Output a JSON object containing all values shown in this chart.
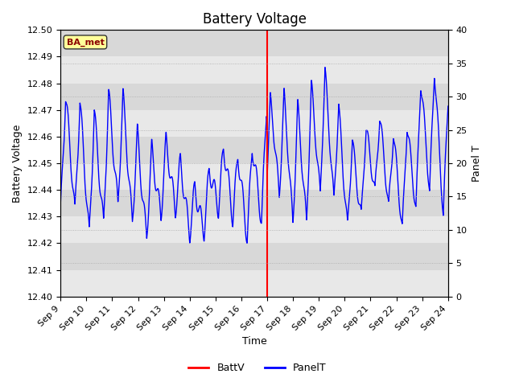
{
  "title": "Battery Voltage",
  "ylabel_left": "Battery Voltage",
  "ylabel_right": "Panel T",
  "xlabel": "Time",
  "ylim_left": [
    12.4,
    12.5
  ],
  "ylim_right": [
    0,
    40
  ],
  "x_start": 9,
  "x_end": 24,
  "x_ticks": [
    9,
    10,
    11,
    12,
    13,
    14,
    15,
    16,
    17,
    18,
    19,
    20,
    21,
    22,
    23,
    24
  ],
  "x_tick_labels": [
    "Sep 9",
    "Sep 10",
    "Sep 11",
    "Sep 12",
    "Sep 13",
    "Sep 14",
    "Sep 15",
    "Sep 16",
    "Sep 17",
    "Sep 18",
    "Sep 19",
    "Sep 20",
    "Sep 21",
    "Sep 22",
    "Sep 23",
    "Sep 24"
  ],
  "vline_x": 17,
  "vline_color": "red",
  "batt_color": "red",
  "panel_color": "blue",
  "bg_color_light": "#e8e8e8",
  "bg_color_dark": "#d8d8d8",
  "annotation_text": "BA_met",
  "annotation_color": "#8b0000",
  "annotation_bg": "#ffff99",
  "title_fontsize": 12,
  "label_fontsize": 9,
  "tick_fontsize": 8,
  "yticks_left": [
    12.4,
    12.41,
    12.42,
    12.43,
    12.44,
    12.45,
    12.46,
    12.47,
    12.48,
    12.49,
    12.5
  ],
  "yticks_right": [
    0,
    5,
    10,
    15,
    20,
    25,
    30,
    35,
    40
  ]
}
